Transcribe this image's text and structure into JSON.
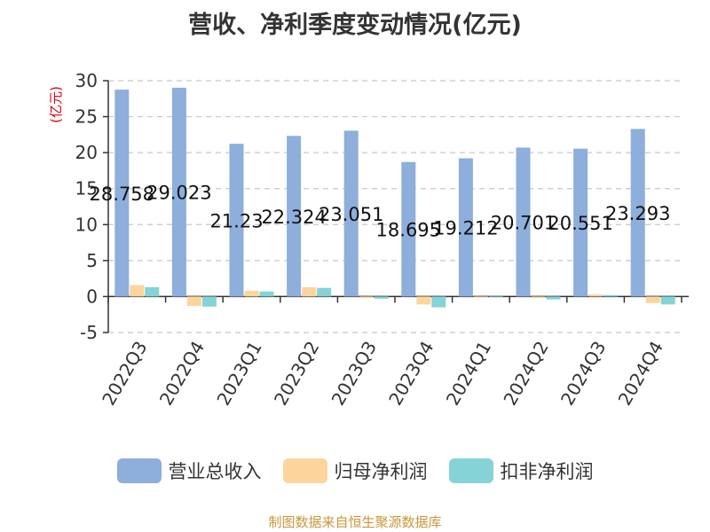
{
  "chart_data": {
    "type": "bar",
    "title": "营收、净利季度变动情况(亿元)",
    "ylabel": "(亿元)",
    "xlabel": "",
    "ylim": [
      -5,
      30
    ],
    "yticks": [
      -5,
      0,
      5,
      10,
      15,
      20,
      25,
      30
    ],
    "grid": true,
    "legend_position": "bottom",
    "categories": [
      "2022Q3",
      "2022Q4",
      "2023Q1",
      "2023Q2",
      "2023Q3",
      "2023Q4",
      "2024Q1",
      "2024Q2",
      "2024Q3",
      "2024Q4"
    ],
    "series": [
      {
        "name": "营业总收入",
        "color": "#8eaedb",
        "values": [
          28.758,
          29.023,
          21.23,
          22.324,
          23.051,
          18.695,
          19.212,
          20.701,
          20.551,
          23.293
        ],
        "labels": [
          "28.758",
          "29.023",
          "21.23",
          "22.324",
          "23.051",
          "18.695",
          "19.212",
          "20.701",
          "20.551",
          "23.293"
        ]
      },
      {
        "name": "归母净利润",
        "color": "#fcd59c",
        "values": [
          1.6,
          -1.3,
          0.8,
          1.3,
          -0.2,
          -1.1,
          -0.1,
          -0.2,
          0.3,
          -0.9
        ]
      },
      {
        "name": "扣非净利润",
        "color": "#85d3d6",
        "values": [
          1.3,
          -1.4,
          0.7,
          1.2,
          -0.3,
          -1.5,
          -0.1,
          -0.4,
          0.2,
          -1.1
        ]
      }
    ]
  },
  "source": "制图数据来自恒生聚源数据库"
}
